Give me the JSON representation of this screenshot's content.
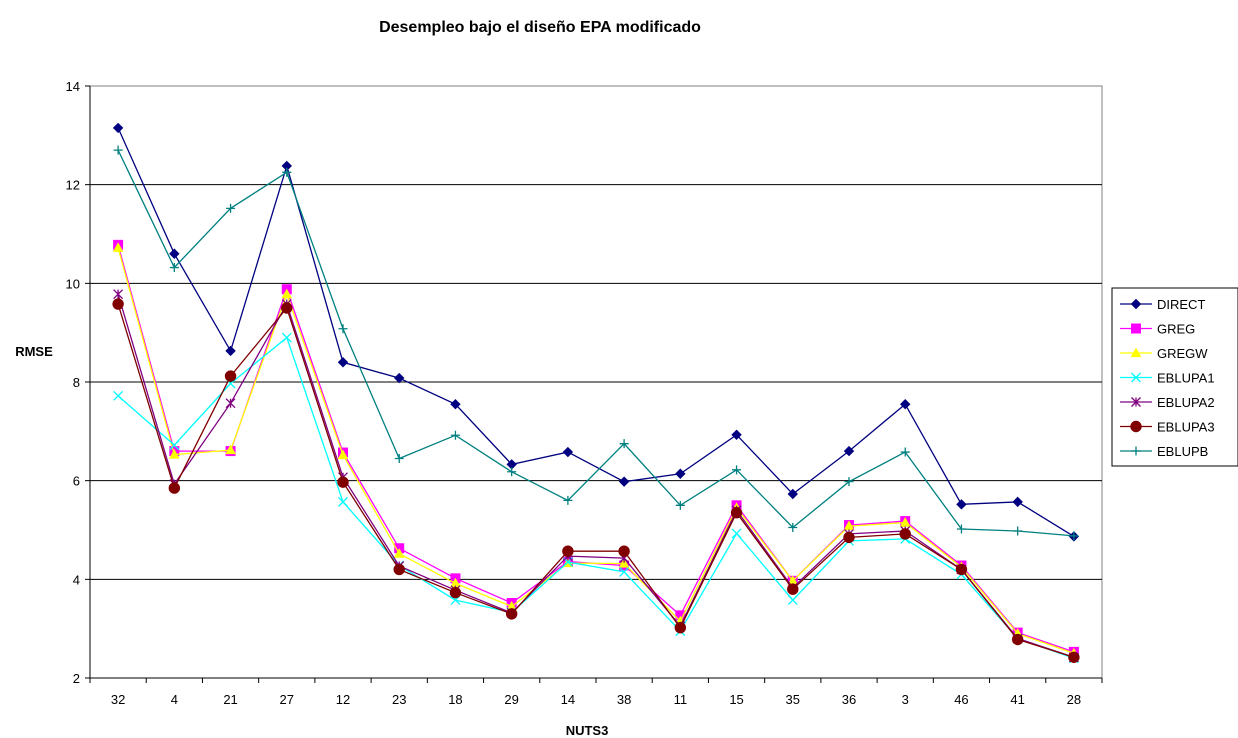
{
  "chart_data": {
    "type": "line",
    "title": "Desempleo bajo el diseño EPA modificado",
    "xlabel": "NUTS3",
    "ylabel": "RMSE",
    "ylim": [
      2,
      14
    ],
    "yticks": [
      2,
      4,
      6,
      8,
      10,
      12,
      14
    ],
    "grid": "horizontal",
    "legend_position": "right",
    "categories": [
      "32",
      "4",
      "21",
      "27",
      "12",
      "23",
      "18",
      "29",
      "14",
      "38",
      "11",
      "15",
      "35",
      "36",
      "3",
      "46",
      "41",
      "28"
    ],
    "series": [
      {
        "name": "DIRECT",
        "color": "#000080",
        "marker": "diamond",
        "values": [
          13.15,
          10.6,
          8.63,
          12.38,
          8.4,
          8.08,
          7.55,
          6.33,
          6.58,
          5.98,
          6.14,
          6.93,
          5.73,
          6.6,
          7.55,
          5.52,
          5.57,
          4.87
        ]
      },
      {
        "name": "GREG",
        "color": "#FF00FF",
        "marker": "square",
        "values": [
          10.78,
          6.6,
          6.6,
          9.88,
          6.57,
          4.63,
          4.02,
          3.52,
          4.36,
          4.28,
          3.27,
          5.5,
          3.97,
          5.1,
          5.18,
          4.28,
          2.92,
          2.53
        ]
      },
      {
        "name": "GREGW",
        "color": "#FFFF00",
        "marker": "triangle",
        "values": [
          10.72,
          6.53,
          6.62,
          9.78,
          6.52,
          4.52,
          3.92,
          3.45,
          4.33,
          4.32,
          3.15,
          5.45,
          3.97,
          5.08,
          5.15,
          4.25,
          2.9,
          2.5
        ]
      },
      {
        "name": "EBLUPA1",
        "color": "#00FFFF",
        "marker": "x",
        "values": [
          7.72,
          6.72,
          7.97,
          8.9,
          5.57,
          4.28,
          3.58,
          3.33,
          4.35,
          4.15,
          2.95,
          4.93,
          3.58,
          4.78,
          4.82,
          4.1,
          2.8,
          2.4
        ]
      },
      {
        "name": "EBLUPA2",
        "color": "#800080",
        "marker": "star",
        "values": [
          9.78,
          5.93,
          7.57,
          9.58,
          6.07,
          4.27,
          3.78,
          3.32,
          4.47,
          4.43,
          3.05,
          5.4,
          3.83,
          4.92,
          4.98,
          4.2,
          2.8,
          2.42
        ]
      },
      {
        "name": "EBLUPA3",
        "color": "#800000",
        "marker": "circle",
        "values": [
          9.58,
          5.85,
          8.12,
          9.5,
          5.97,
          4.2,
          3.73,
          3.3,
          4.57,
          4.57,
          3.02,
          5.35,
          3.8,
          4.85,
          4.92,
          4.2,
          2.78,
          2.42
        ]
      },
      {
        "name": "EBLUPB",
        "color": "#008080",
        "marker": "plus",
        "values": [
          12.7,
          10.32,
          11.52,
          12.25,
          9.08,
          6.45,
          6.92,
          6.18,
          5.6,
          6.75,
          5.5,
          6.22,
          5.05,
          5.98,
          6.58,
          5.02,
          4.98,
          4.88
        ]
      }
    ]
  }
}
